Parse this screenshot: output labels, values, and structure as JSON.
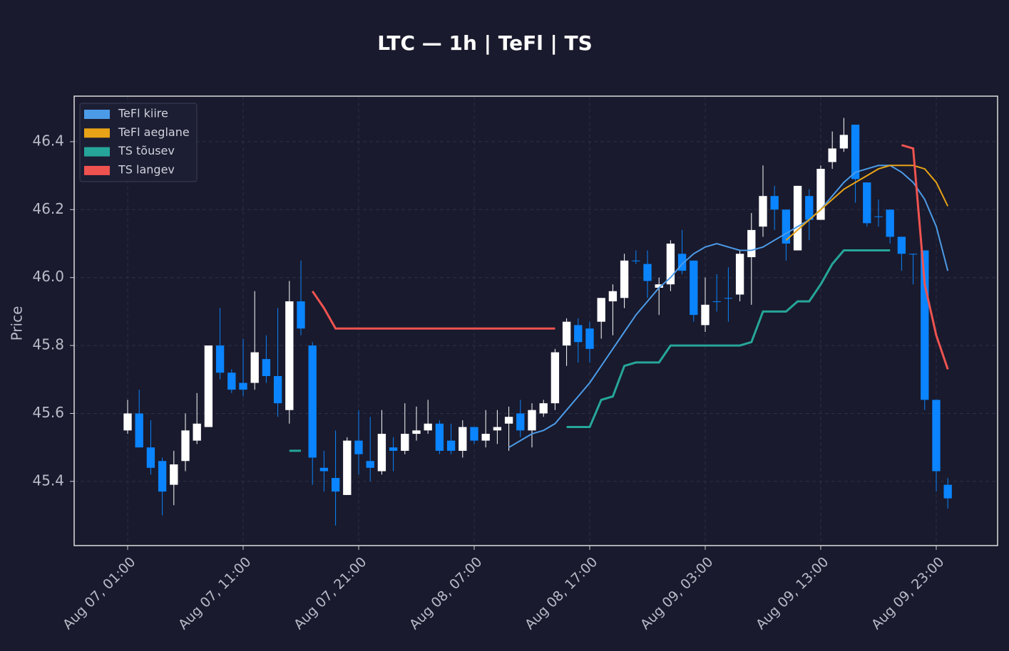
{
  "chart_data": {
    "type": "candlestick",
    "title": "LTC — 1h  |  TeFl  |  TS",
    "ylabel": "Price",
    "x": [
      0,
      1,
      2,
      3,
      4,
      5,
      6,
      7,
      8,
      9,
      10,
      11,
      12,
      13,
      14,
      15,
      16,
      17,
      18,
      19,
      20,
      21,
      22,
      23,
      24,
      25,
      26,
      27,
      28,
      29,
      30,
      31,
      32,
      33,
      34,
      35,
      36,
      37,
      38,
      39,
      40,
      41,
      42,
      43,
      44,
      45,
      46,
      47,
      48,
      49,
      50,
      51,
      52,
      53,
      54,
      55,
      56,
      57,
      58,
      59,
      60,
      61,
      62,
      63,
      64,
      65,
      66,
      67,
      68,
      69,
      70,
      71
    ],
    "open": [
      45.55,
      45.6,
      45.5,
      45.46,
      45.39,
      45.46,
      45.52,
      45.56,
      45.8,
      45.72,
      45.69,
      45.69,
      45.76,
      45.71,
      45.61,
      45.93,
      45.8,
      45.44,
      45.41,
      45.36,
      45.52,
      45.46,
      45.43,
      45.5,
      45.49,
      45.54,
      45.55,
      45.57,
      45.52,
      45.49,
      45.56,
      45.52,
      45.55,
      45.57,
      45.6,
      45.55,
      45.6,
      45.63,
      45.8,
      45.86,
      45.85,
      45.87,
      45.93,
      45.94,
      46.05,
      46.04,
      45.97,
      45.98,
      46.07,
      46.05,
      45.86,
      45.93,
      45.94,
      45.95,
      46.06,
      46.15,
      46.24,
      46.2,
      46.08,
      46.24,
      46.17,
      46.34,
      46.38,
      46.45,
      46.28,
      46.18,
      46.2,
      46.12,
      46.07,
      46.08,
      45.64,
      45.39
    ],
    "high": [
      45.64,
      45.67,
      45.58,
      45.47,
      45.49,
      45.6,
      45.66,
      45.8,
      45.91,
      45.73,
      45.82,
      45.96,
      45.83,
      45.91,
      45.99,
      46.05,
      45.81,
      45.49,
      45.55,
      45.53,
      45.61,
      45.59,
      45.61,
      45.53,
      45.63,
      45.62,
      45.64,
      45.58,
      45.57,
      45.58,
      45.56,
      45.61,
      45.61,
      45.62,
      45.64,
      45.63,
      45.64,
      45.79,
      45.88,
      45.88,
      45.87,
      45.94,
      45.98,
      46.07,
      46.08,
      46.08,
      46.0,
      46.11,
      46.14,
      46.05,
      46.0,
      46.01,
      46.03,
      46.08,
      46.19,
      46.33,
      46.27,
      46.2,
      46.27,
      46.26,
      46.33,
      46.43,
      46.47,
      46.45,
      46.28,
      46.23,
      46.2,
      46.12,
      46.07,
      46.08,
      45.64,
      45.41
    ],
    "low": [
      45.54,
      45.5,
      45.42,
      45.3,
      45.33,
      45.43,
      45.51,
      45.56,
      45.7,
      45.66,
      45.65,
      45.67,
      45.69,
      45.59,
      45.57,
      45.83,
      45.39,
      45.37,
      45.27,
      45.36,
      45.42,
      45.4,
      45.42,
      45.43,
      45.48,
      45.52,
      45.54,
      45.48,
      45.48,
      45.47,
      45.51,
      45.5,
      45.51,
      45.49,
      45.53,
      45.5,
      45.59,
      45.61,
      45.74,
      45.75,
      45.75,
      45.82,
      45.83,
      45.91,
      46.04,
      45.94,
      45.89,
      45.96,
      46.01,
      45.87,
      45.84,
      45.9,
      45.87,
      45.93,
      45.92,
      46.12,
      46.14,
      46.05,
      46.08,
      46.11,
      46.17,
      46.32,
      46.37,
      46.22,
      46.15,
      46.15,
      46.1,
      46.02,
      45.98,
      45.61,
      45.37,
      45.32
    ],
    "close": [
      45.6,
      45.5,
      45.44,
      45.37,
      45.45,
      45.55,
      45.57,
      45.8,
      45.72,
      45.67,
      45.67,
      45.78,
      45.71,
      45.63,
      45.93,
      45.85,
      45.47,
      45.43,
      45.37,
      45.52,
      45.48,
      45.44,
      45.54,
      45.49,
      45.54,
      45.55,
      45.57,
      45.49,
      45.49,
      45.56,
      45.52,
      45.54,
      45.56,
      45.59,
      45.55,
      45.61,
      45.63,
      45.78,
      45.87,
      45.81,
      45.79,
      45.94,
      45.96,
      46.05,
      46.05,
      45.99,
      45.98,
      46.1,
      46.02,
      45.89,
      45.92,
      45.93,
      45.94,
      46.07,
      46.14,
      46.24,
      46.2,
      46.1,
      46.27,
      46.17,
      46.32,
      46.38,
      46.42,
      46.29,
      46.16,
      46.18,
      46.12,
      46.07,
      46.07,
      45.64,
      45.43,
      45.35
    ],
    "up_color": "#ffffff",
    "down_color": "#0a84ff",
    "lines": [
      {
        "name": "TeFl kiire",
        "color": "#4c9be8",
        "width": 2,
        "values": [
          null,
          null,
          null,
          null,
          null,
          null,
          null,
          null,
          null,
          null,
          null,
          null,
          null,
          null,
          null,
          null,
          null,
          null,
          null,
          null,
          null,
          null,
          null,
          null,
          null,
          null,
          null,
          null,
          null,
          null,
          null,
          null,
          null,
          45.5,
          45.52,
          45.54,
          45.55,
          45.57,
          45.61,
          45.65,
          45.69,
          45.74,
          45.79,
          45.84,
          45.89,
          45.93,
          45.97,
          46.0,
          46.04,
          46.07,
          46.09,
          46.1,
          46.09,
          46.08,
          46.08,
          46.09,
          46.11,
          46.13,
          46.15,
          46.17,
          46.2,
          46.24,
          46.28,
          46.31,
          46.32,
          46.33,
          46.33,
          46.31,
          46.28,
          46.23,
          46.15,
          46.02
        ]
      },
      {
        "name": "TeFl aeglane",
        "color": "#e8a317",
        "width": 2,
        "values": [
          null,
          null,
          null,
          null,
          null,
          null,
          null,
          null,
          null,
          null,
          null,
          null,
          null,
          null,
          null,
          null,
          null,
          null,
          null,
          null,
          null,
          null,
          null,
          null,
          null,
          null,
          null,
          null,
          null,
          null,
          null,
          null,
          null,
          null,
          null,
          null,
          null,
          null,
          null,
          null,
          null,
          null,
          null,
          null,
          null,
          null,
          null,
          null,
          null,
          null,
          null,
          null,
          null,
          null,
          null,
          null,
          null,
          46.11,
          46.14,
          46.17,
          46.2,
          46.23,
          46.26,
          46.28,
          46.3,
          46.32,
          46.33,
          46.33,
          46.33,
          46.32,
          46.28,
          46.21
        ]
      },
      {
        "name": "TS tõusev",
        "color": "#26a69a",
        "width": 3,
        "values": [
          null,
          null,
          null,
          null,
          null,
          null,
          null,
          null,
          null,
          null,
          null,
          null,
          null,
          null,
          45.49,
          45.49,
          null,
          null,
          null,
          null,
          null,
          null,
          null,
          null,
          null,
          null,
          null,
          null,
          null,
          null,
          null,
          null,
          null,
          null,
          null,
          null,
          null,
          null,
          45.56,
          45.56,
          45.56,
          45.64,
          45.65,
          45.74,
          45.75,
          45.75,
          45.75,
          45.8,
          45.8,
          45.8,
          45.8,
          45.8,
          45.8,
          45.8,
          45.81,
          45.9,
          45.9,
          45.9,
          45.93,
          45.93,
          45.98,
          46.04,
          46.08,
          46.08,
          46.08,
          46.08,
          46.08,
          null,
          null,
          null,
          null,
          null
        ]
      },
      {
        "name": "TS langev",
        "color": "#ef5350",
        "width": 3,
        "values": [
          null,
          null,
          null,
          null,
          null,
          null,
          null,
          null,
          null,
          null,
          null,
          null,
          null,
          null,
          null,
          null,
          45.96,
          45.91,
          45.85,
          45.85,
          45.85,
          45.85,
          45.85,
          45.85,
          45.85,
          45.85,
          45.85,
          45.85,
          45.85,
          45.85,
          45.85,
          45.85,
          45.85,
          45.85,
          45.85,
          45.85,
          45.85,
          45.85,
          null,
          null,
          null,
          null,
          null,
          null,
          null,
          null,
          null,
          null,
          null,
          null,
          null,
          null,
          null,
          null,
          null,
          null,
          null,
          null,
          null,
          null,
          null,
          null,
          null,
          null,
          null,
          null,
          null,
          46.39,
          46.38,
          45.98,
          45.83,
          45.73
        ]
      }
    ],
    "xlim": [
      -4.63,
      75.31
    ],
    "xticks": [
      {
        "value": 0,
        "label": "Aug 07, 01:00"
      },
      {
        "value": 10,
        "label": "Aug 07, 11:00"
      },
      {
        "value": 20,
        "label": "Aug 07, 21:00"
      },
      {
        "value": 30,
        "label": "Aug 08, 07:00"
      },
      {
        "value": 40,
        "label": "Aug 08, 17:00"
      },
      {
        "value": 50,
        "label": "Aug 09, 03:00"
      },
      {
        "value": 60,
        "label": "Aug 09, 13:00"
      },
      {
        "value": 70,
        "label": "Aug 09, 23:00"
      }
    ],
    "ylim": [
      45.211,
      46.534
    ],
    "yticks": [
      45.4,
      45.6,
      45.8,
      {
        "value": 46,
        "label": "46.0"
      },
      46.2,
      46.4
    ],
    "grid": true,
    "legend": "upper left"
  }
}
